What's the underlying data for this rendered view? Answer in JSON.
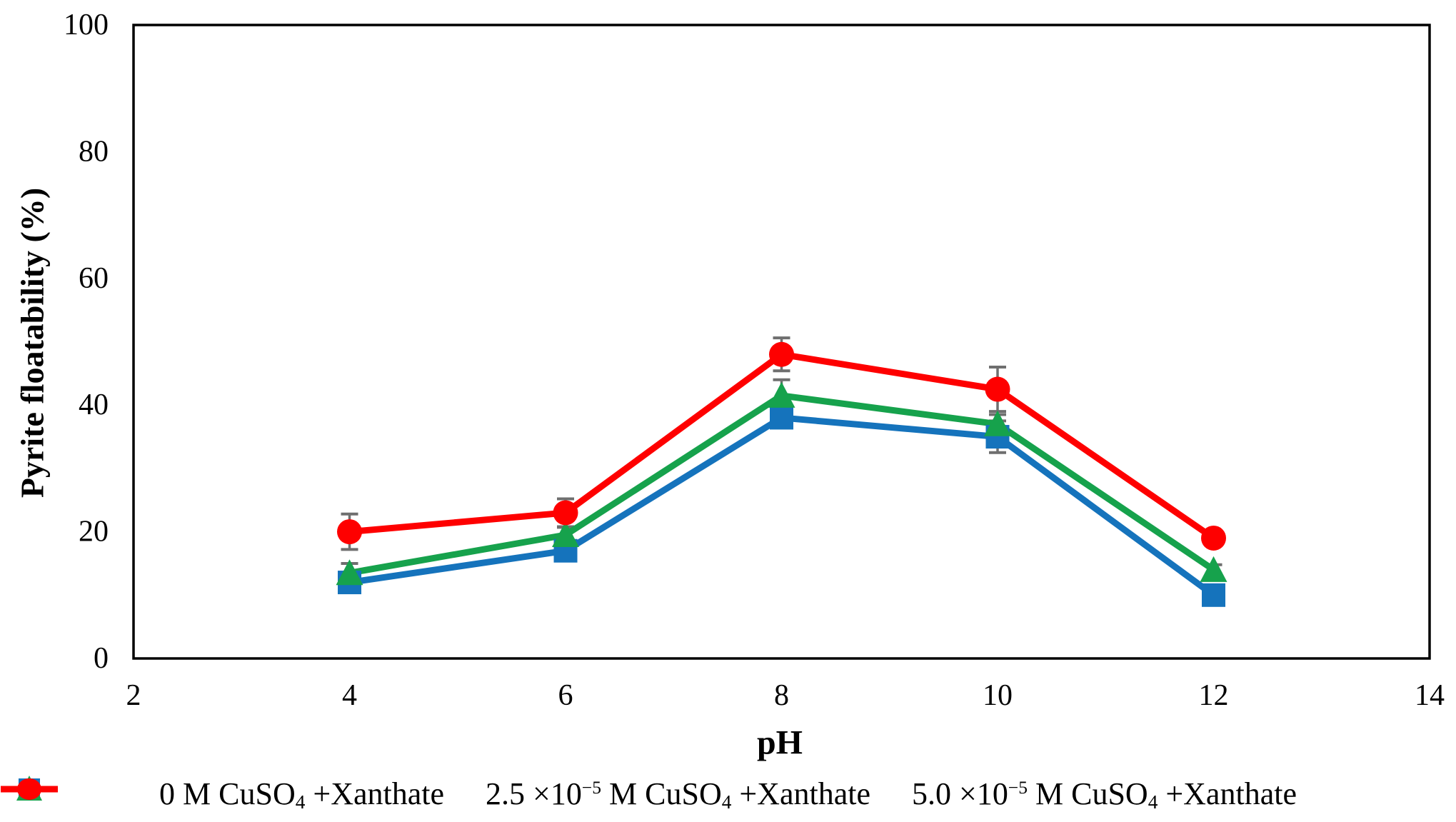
{
  "chart_data": {
    "type": "line",
    "title": "",
    "xlabel": "pH",
    "ylabel": "Pyrite floatability (%)",
    "xlim": [
      2,
      14
    ],
    "ylim": [
      0,
      100
    ],
    "xticks": [
      2,
      4,
      6,
      8,
      10,
      12,
      14
    ],
    "yticks": [
      0,
      20,
      40,
      60,
      80,
      100
    ],
    "grid": false,
    "legend_position": "bottom",
    "error_bar_color": "#6F6F6F",
    "axis_color": "#000000",
    "x": [
      4,
      6,
      8,
      10,
      12
    ],
    "series": [
      {
        "name": "0 M CuSO4 +Xanthate",
        "marker": "square",
        "color": "#1573BC",
        "values": [
          12,
          17,
          38,
          35,
          10
        ],
        "errors": [
          1.2,
          1.0,
          1.5,
          2.5,
          0.8
        ]
      },
      {
        "name": "2.5 ×10−5 M CuSO4 +Xanthate",
        "marker": "triangle",
        "color": "#16A24C",
        "values": [
          13.5,
          19.5,
          41.5,
          37,
          14
        ],
        "errors": [
          1.5,
          1.2,
          2.5,
          1.5,
          0.8
        ]
      },
      {
        "name": "5.0 ×10−5 M CuSO4 +Xanthate",
        "marker": "circle",
        "color": "#FE0000",
        "values": [
          20,
          23,
          48,
          42.5,
          19
        ],
        "errors": [
          2.8,
          2.2,
          2.6,
          3.5,
          0.8
        ]
      }
    ]
  },
  "legend": {
    "items": [
      {
        "pre": "0 M CuSO",
        "sup": "",
        "mid": "",
        "sub": "4",
        "post": " +Xanthate"
      },
      {
        "pre": "2.5 ×10",
        "sup": "−5",
        "mid": " M CuSO",
        "sub": "4",
        "post": " +Xanthate"
      },
      {
        "pre": "5.0 ×10",
        "sup": "−5",
        "mid": " M CuSO",
        "sub": "4",
        "post": " +Xanthate"
      }
    ]
  }
}
